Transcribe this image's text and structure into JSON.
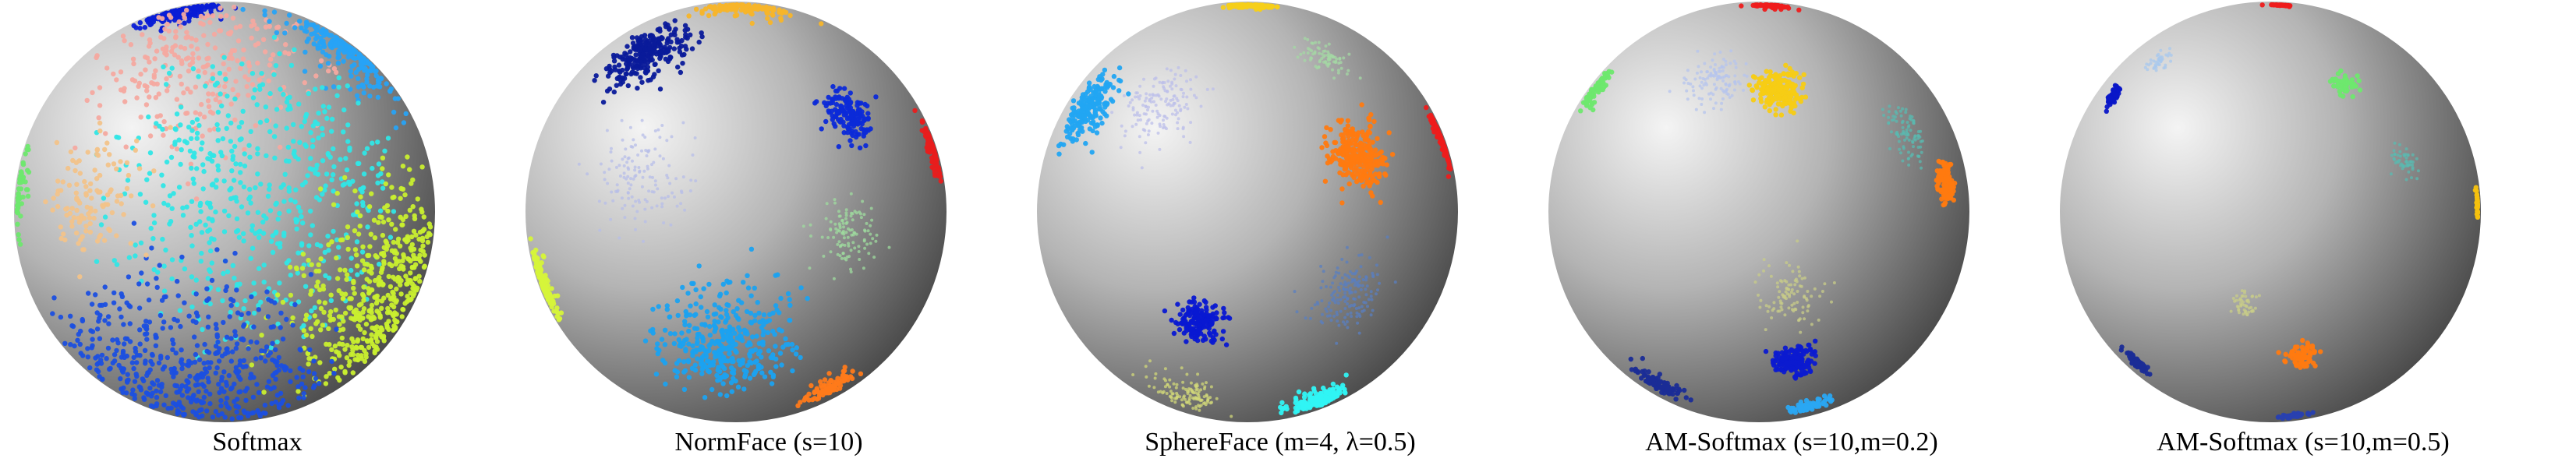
{
  "panels": [
    {
      "caption": "Softmax",
      "clusters": [
        {
          "name": "dark-blue-cluster",
          "color": "#0a1ed6",
          "lon": -55,
          "lat": 75,
          "spread": 0.1,
          "n": 220,
          "dot": true
        },
        {
          "name": "salmon-cluster",
          "color": "#f4a9a0",
          "lon": -10,
          "lat": 48,
          "spread": 0.28,
          "n": 260,
          "dot": true
        },
        {
          "name": "sky-blue-cluster",
          "color": "#27a3f5",
          "lon": 70,
          "lat": 50,
          "spread": 0.18,
          "n": 220,
          "dot": true
        },
        {
          "name": "cyan-cluster",
          "color": "#30e6e6",
          "lon": 10,
          "lat": 5,
          "spread": 0.4,
          "n": 520,
          "dot": true
        },
        {
          "name": "yellow-green-cluster",
          "color": "#c9ef2f",
          "lon": 55,
          "lat": -25,
          "spread": 0.28,
          "n": 480,
          "dot": true
        },
        {
          "name": "royal-blue-cluster",
          "color": "#1b4fe0",
          "lon": -18,
          "lat": -52,
          "spread": 0.34,
          "n": 520,
          "dot": true
        },
        {
          "name": "peach-cluster",
          "color": "#f2c38a",
          "lon": -42,
          "lat": 5,
          "spread": 0.16,
          "n": 120,
          "dot": true
        },
        {
          "name": "green-cluster",
          "color": "#6ee86e",
          "lon": -88,
          "lat": 8,
          "spread": 0.12,
          "n": 90,
          "dot": true
        }
      ]
    },
    {
      "caption": "NormFace (s=10)",
      "clusters": [
        {
          "name": "navy-cluster",
          "color": "#0a1a9a",
          "lon": -42,
          "lat": 50,
          "spread": 0.11,
          "n": 260,
          "dot": true
        },
        {
          "name": "orange-cluster",
          "color": "#f7b52a",
          "lon": 12,
          "lat": 82,
          "spread": 0.1,
          "n": 140,
          "dot": true
        },
        {
          "name": "blue-cluster",
          "color": "#0c2ad8",
          "lon": 38,
          "lat": 28,
          "spread": 0.07,
          "n": 170,
          "dot": true
        },
        {
          "name": "red-cluster",
          "color": "#e81d1d",
          "lon": 86,
          "lat": 18,
          "spread": 0.08,
          "n": 130,
          "dot": true
        },
        {
          "name": "lavender-cluster",
          "color": "#b7bde8",
          "lon": -28,
          "lat": 10,
          "spread": 0.13,
          "n": 140,
          "dot": false
        },
        {
          "name": "mint-cluster",
          "color": "#9fdc9f",
          "lon": 34,
          "lat": -6,
          "spread": 0.09,
          "n": 110,
          "dot": false
        },
        {
          "name": "sky-blue-cluster",
          "color": "#1ba2f0",
          "lon": -4,
          "lat": -40,
          "spread": 0.17,
          "n": 380,
          "dot": true
        },
        {
          "name": "yellow-green-cluster",
          "color": "#d6f43a",
          "lon": -84,
          "lat": -20,
          "spread": 0.08,
          "n": 150,
          "dot": true
        },
        {
          "name": "dark-orange-cluster",
          "color": "#ff7a1a",
          "lon": 58,
          "lat": -58,
          "spread": 0.07,
          "n": 90,
          "dot": true
        }
      ]
    },
    {
      "caption": "SphereFace (m=4, λ=0.5)",
      "clusters": [
        {
          "name": "gold-cluster",
          "color": "#f5cf1a",
          "lon": 5,
          "lat": 86,
          "spread": 0.06,
          "n": 120,
          "dot": true
        },
        {
          "name": "mint-cluster",
          "color": "#a4d8a4",
          "lon": 34,
          "lat": 48,
          "spread": 0.06,
          "n": 80,
          "dot": false
        },
        {
          "name": "red-cluster",
          "color": "#ee1c1c",
          "lon": 86,
          "lat": 20,
          "spread": 0.07,
          "n": 110,
          "dot": true
        },
        {
          "name": "sky-blue-cluster",
          "color": "#22a5f2",
          "lon": -62,
          "lat": 30,
          "spread": 0.09,
          "n": 200,
          "dot": true
        },
        {
          "name": "lavender-cluster",
          "color": "#bcbfe9",
          "lon": -30,
          "lat": 32,
          "spread": 0.1,
          "n": 150,
          "dot": false
        },
        {
          "name": "orange-cluster",
          "color": "#ff7a10",
          "lon": 34,
          "lat": 16,
          "spread": 0.08,
          "n": 260,
          "dot": true
        },
        {
          "name": "blue-cluster",
          "color": "#0818d2",
          "lon": -16,
          "lat": -32,
          "spread": 0.06,
          "n": 170,
          "dot": true
        },
        {
          "name": "slate-blue-cluster",
          "color": "#5a7fc0",
          "lon": 32,
          "lat": -24,
          "spread": 0.09,
          "n": 160,
          "dot": false
        },
        {
          "name": "cyan-cluster",
          "color": "#30f4f4",
          "lon": 55,
          "lat": -65,
          "spread": 0.08,
          "n": 160,
          "dot": true
        },
        {
          "name": "khaki-cluster",
          "color": "#d2d87a",
          "lon": -40,
          "lat": -62,
          "spread": 0.1,
          "n": 120,
          "dot": false
        }
      ]
    },
    {
      "caption": "AM-Softmax (s=10,m=0.2)",
      "clusters": [
        {
          "name": "red-cluster",
          "color": "#ee1c1c",
          "lon": 40,
          "lat": 84,
          "spread": 0.05,
          "n": 80,
          "dot": true
        },
        {
          "name": "light-green-cluster",
          "color": "#6ee86e",
          "lon": -78,
          "lat": 36,
          "spread": 0.06,
          "n": 80,
          "dot": true
        },
        {
          "name": "lavender-cluster",
          "color": "#b5c4ee",
          "lon": -16,
          "lat": 40,
          "spread": 0.08,
          "n": 120,
          "dot": false
        },
        {
          "name": "gold-cluster",
          "color": "#f7cc14",
          "lon": 7,
          "lat": 36,
          "spread": 0.06,
          "n": 200,
          "dot": true
        },
        {
          "name": "teal-cluster",
          "color": "#5ab9b0",
          "lon": 50,
          "lat": 22,
          "spread": 0.07,
          "n": 90,
          "dot": false
        },
        {
          "name": "orange-cluster",
          "color": "#ff7a10",
          "lon": 66,
          "lat": 8,
          "spread": 0.05,
          "n": 140,
          "dot": true
        },
        {
          "name": "khaki-cluster",
          "color": "#c8cc88",
          "lon": 10,
          "lat": -24,
          "spread": 0.09,
          "n": 100,
          "dot": false
        },
        {
          "name": "blue-cluster",
          "color": "#0c1ad0",
          "lon": 14,
          "lat": -46,
          "spread": 0.05,
          "n": 170,
          "dot": true
        },
        {
          "name": "navy-cluster",
          "color": "#1a2c96",
          "lon": -60,
          "lat": -56,
          "spread": 0.06,
          "n": 80,
          "dot": true
        },
        {
          "name": "sky-blue-cluster",
          "color": "#2aa6f2",
          "lon": 45,
          "lat": -70,
          "spread": 0.05,
          "n": 70,
          "dot": true
        }
      ]
    },
    {
      "caption": "AM-Softmax (s=10,m=0.5)",
      "clusters": [
        {
          "name": "red-cluster",
          "color": "#ee1c1c",
          "lon": 55,
          "lat": 86,
          "spread": 0.03,
          "n": 40,
          "dot": true
        },
        {
          "name": "blue-cluster",
          "color": "#0a16c8",
          "lon": -66,
          "lat": 34,
          "spread": 0.03,
          "n": 60,
          "dot": true
        },
        {
          "name": "light-blue-cluster",
          "color": "#a8c8ee",
          "lon": -52,
          "lat": 46,
          "spread": 0.04,
          "n": 40,
          "dot": false
        },
        {
          "name": "green-cluster",
          "color": "#6ee86e",
          "lon": 27,
          "lat": 38,
          "spread": 0.03,
          "n": 60,
          "dot": true
        },
        {
          "name": "teal-cluster",
          "color": "#5ab9b0",
          "lon": 42,
          "lat": 14,
          "spread": 0.04,
          "n": 50,
          "dot": false
        },
        {
          "name": "gold-cluster",
          "color": "#f5c10e",
          "lon": 88,
          "lat": 2,
          "spread": 0.04,
          "n": 40,
          "dot": true
        },
        {
          "name": "khaki-cluster",
          "color": "#c8cc88",
          "lon": -8,
          "lat": -26,
          "spread": 0.04,
          "n": 50,
          "dot": false
        },
        {
          "name": "orange-cluster",
          "color": "#ff7a10",
          "lon": 12,
          "lat": -44,
          "spread": 0.04,
          "n": 70,
          "dot": true
        },
        {
          "name": "navy-cluster",
          "color": "#1a2c96",
          "lon": -70,
          "lat": -46,
          "spread": 0.04,
          "n": 60,
          "dot": true
        },
        {
          "name": "cobalt-cluster",
          "color": "#2840b0",
          "lon": 40,
          "lat": -80,
          "spread": 0.04,
          "n": 40,
          "dot": true
        }
      ]
    }
  ]
}
